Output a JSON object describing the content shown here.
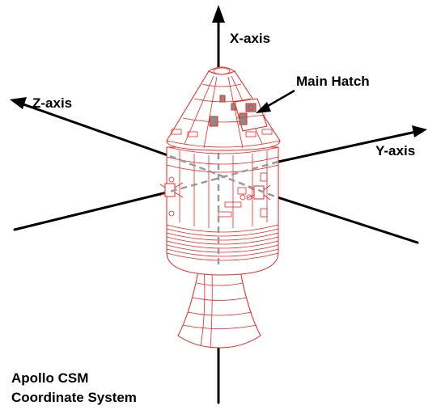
{
  "labels": {
    "x_axis": "X-axis",
    "y_axis": "Y-axis",
    "z_axis": "Z-axis",
    "main_hatch": "Main Hatch"
  },
  "caption": {
    "line1": "Apollo CSM",
    "line2": "Coordinate System"
  },
  "colors": {
    "spacecraft_outline": "#ff1e1e",
    "axes": "#000000",
    "hidden_axis_dash": "#9a9a9a"
  }
}
